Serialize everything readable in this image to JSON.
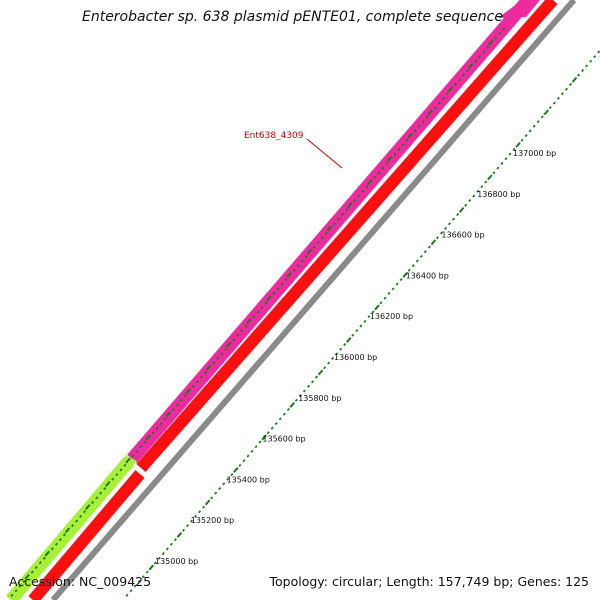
{
  "title": "Enterobacter sp. 638 plasmid pENTE01, complete sequence",
  "footer": {
    "accession": "Accession: NC_009425",
    "summary": "Topology: circular; Length: 157,749 bp; Genes: 125"
  },
  "colors": {
    "feature_magenta": "#ee2a9e",
    "feature_red": "#fb0f0f",
    "feature_green": "#a8f037",
    "backbone": "#8a8a8a",
    "tick_green": "#1a7a1a",
    "label_red": "#c40000"
  },
  "gene_label": {
    "text": "Ent638_4309"
  },
  "ruler": {
    "labels": [
      {
        "bp": 135000,
        "text": "135000 bp"
      },
      {
        "bp": 135200,
        "text": "135200 bp"
      },
      {
        "bp": 135400,
        "text": "135400 bp"
      },
      {
        "bp": 135600,
        "text": "135600 bp"
      },
      {
        "bp": 135800,
        "text": "135800 bp"
      },
      {
        "bp": 136000,
        "text": "136000 bp"
      },
      {
        "bp": 136200,
        "text": "136200 bp"
      },
      {
        "bp": 136400,
        "text": "136400 bp"
      },
      {
        "bp": 136600,
        "text": "136600 bp"
      },
      {
        "bp": 136800,
        "text": "136800 bp"
      },
      {
        "bp": 137000,
        "text": "137000 bp"
      }
    ]
  }
}
